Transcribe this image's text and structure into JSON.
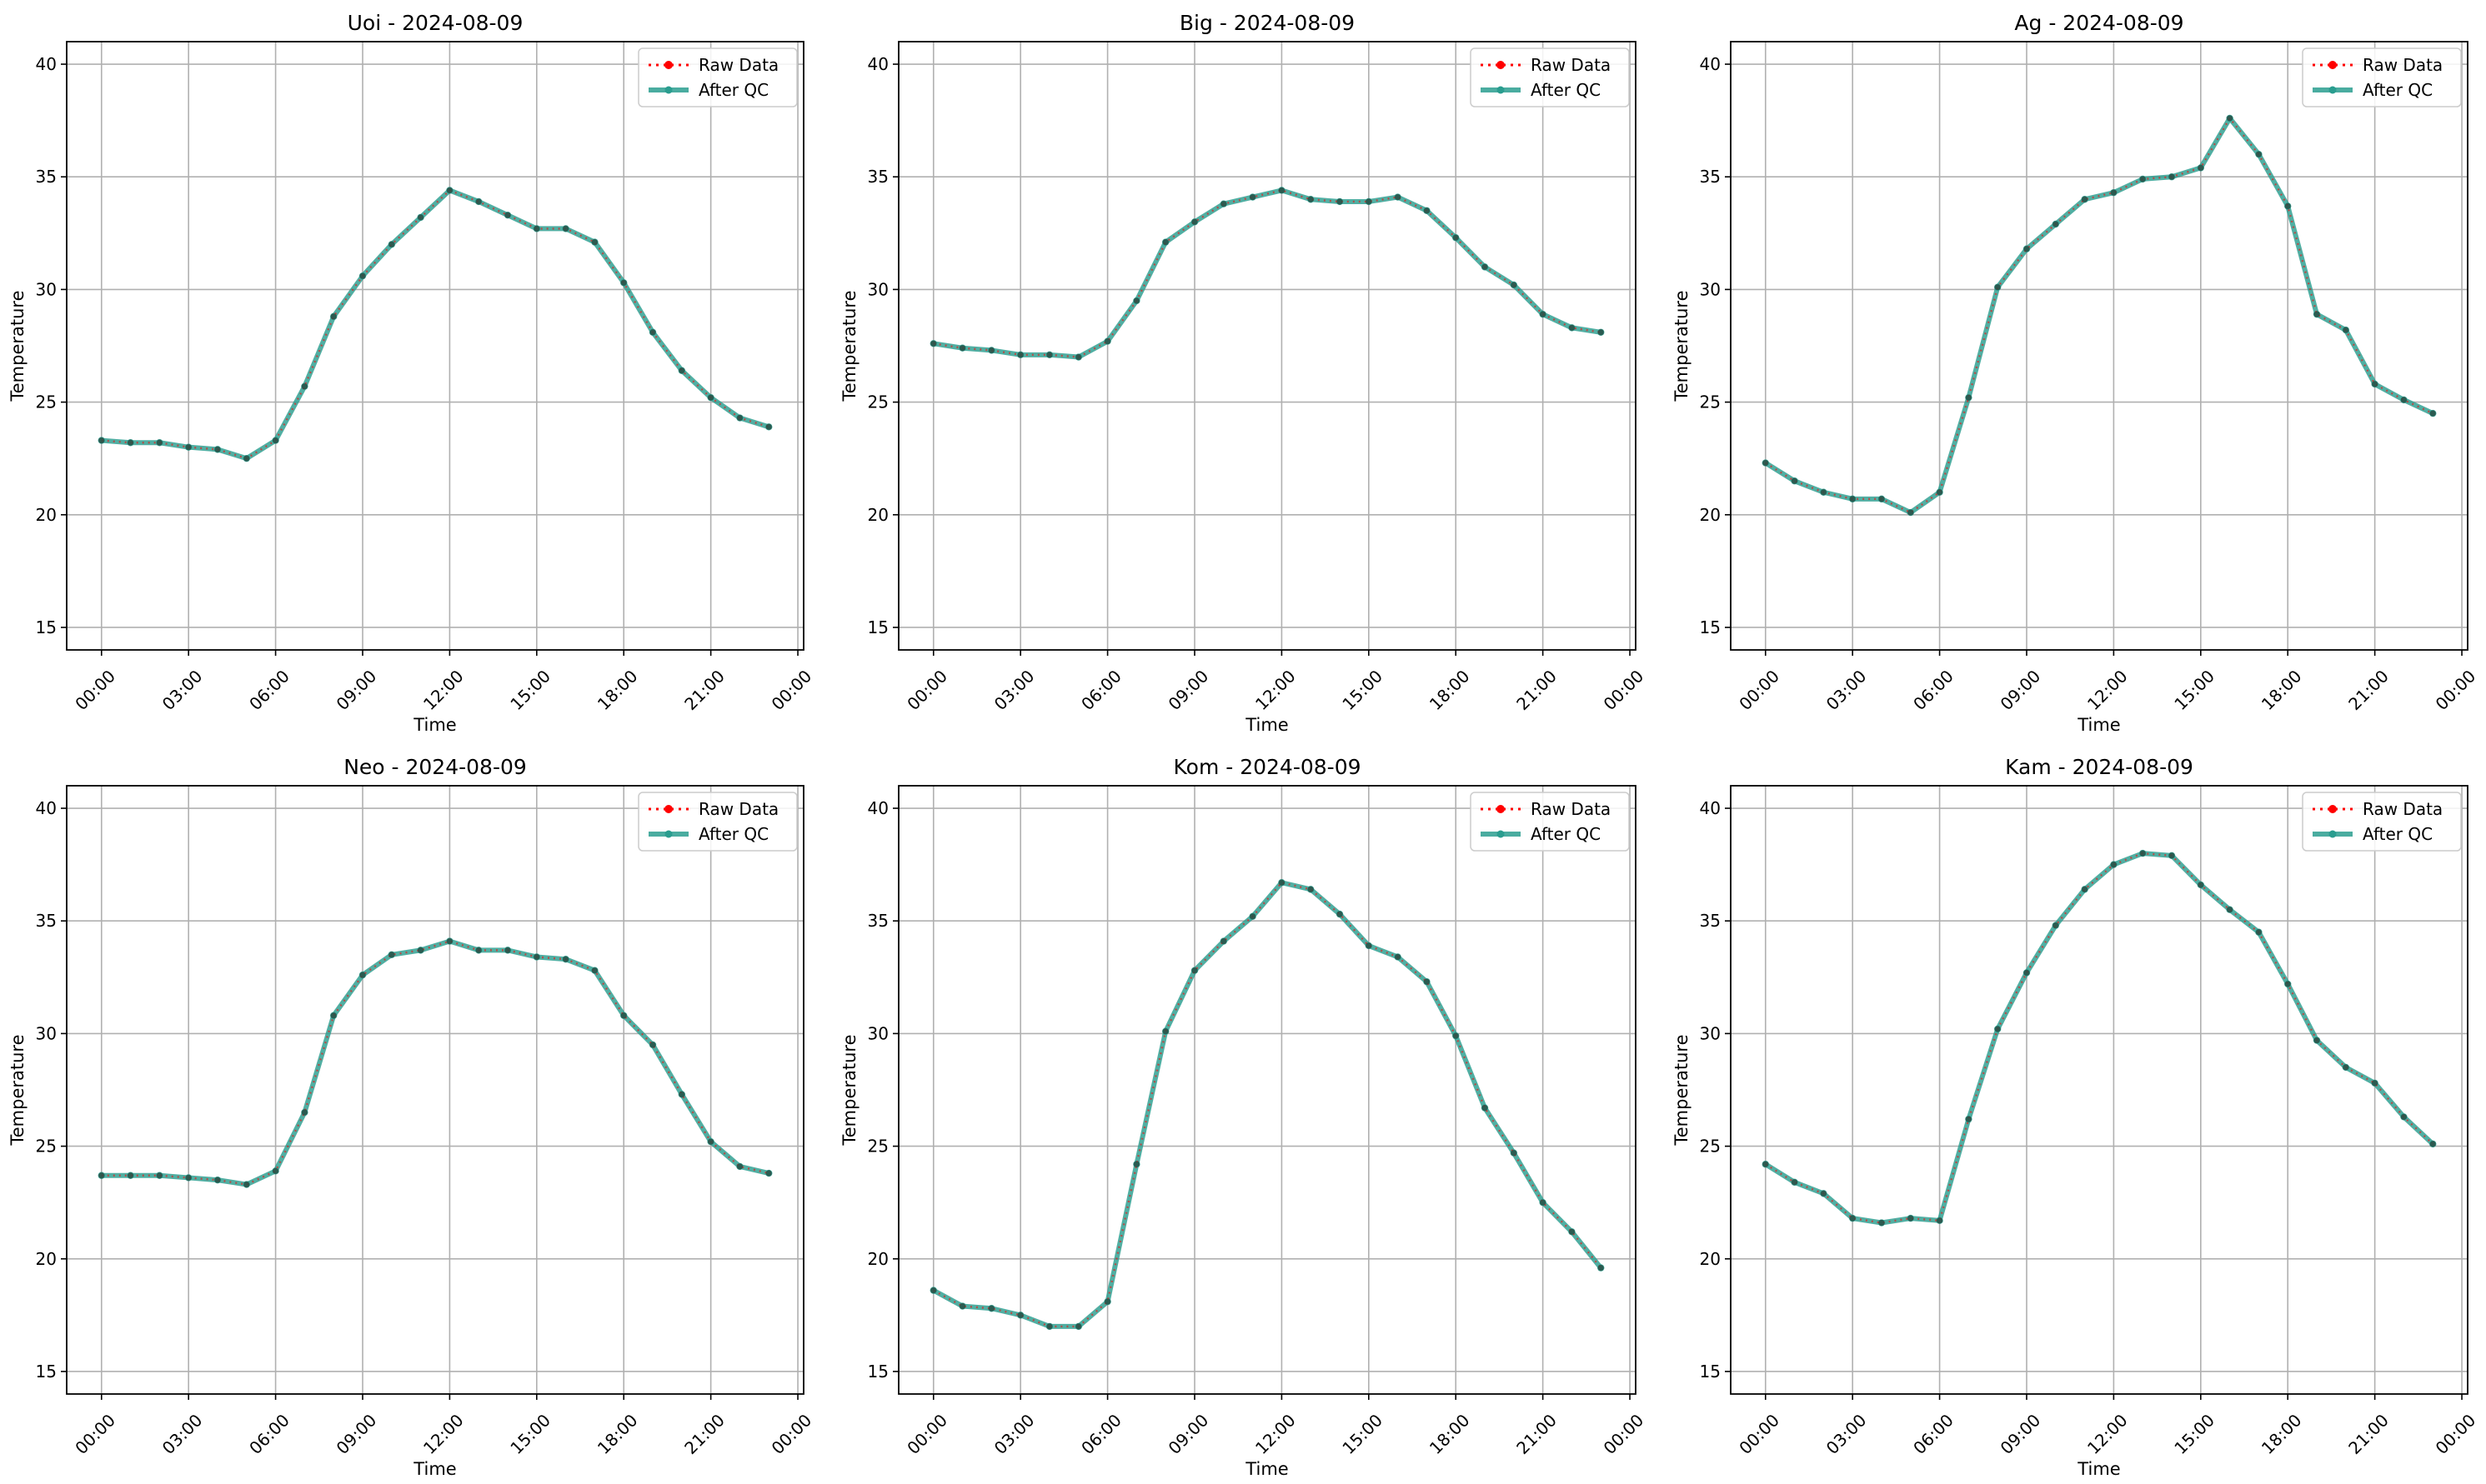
{
  "figure": {
    "xticks": [
      "00:00",
      "03:00",
      "06:00",
      "09:00",
      "12:00",
      "15:00",
      "18:00",
      "21:00",
      "00:00"
    ],
    "yticks": [
      15,
      20,
      25,
      30,
      35,
      40
    ]
  },
  "chart_data": [
    {
      "type": "line",
      "title": "Uoi - 2024-08-09",
      "xlabel": "Time",
      "ylabel": "Temperature",
      "x_hours": [
        0,
        1,
        2,
        3,
        4,
        5,
        6,
        7,
        8,
        9,
        10,
        11,
        12,
        13,
        14,
        15,
        16,
        17,
        18,
        19,
        20,
        21,
        22,
        23
      ],
      "xlim": [
        -1.2,
        24.2
      ],
      "ylim": [
        14,
        41
      ],
      "grid": true,
      "legend": "top-right",
      "series": [
        {
          "name": "Raw Data",
          "color": "#ff0000",
          "style": "dotted-markers",
          "values": [
            23.3,
            23.2,
            23.2,
            23.0,
            22.9,
            22.5,
            23.3,
            25.7,
            28.8,
            30.6,
            32.0,
            33.2,
            34.4,
            33.9,
            33.3,
            32.7,
            32.7,
            32.1,
            30.3,
            28.1,
            26.4,
            25.2,
            24.3,
            23.9
          ]
        },
        {
          "name": "After QC",
          "color": "#2a9d8f",
          "style": "solid-thick",
          "values": [
            23.3,
            23.2,
            23.2,
            23.0,
            22.9,
            22.5,
            23.3,
            25.7,
            28.8,
            30.6,
            32.0,
            33.2,
            34.4,
            33.9,
            33.3,
            32.7,
            32.7,
            32.1,
            30.3,
            28.1,
            26.4,
            25.2,
            24.3,
            23.9
          ]
        }
      ]
    },
    {
      "type": "line",
      "title": "Big - 2024-08-09",
      "xlabel": "Time",
      "ylabel": "Temperature",
      "x_hours": [
        0,
        1,
        2,
        3,
        4,
        5,
        6,
        7,
        8,
        9,
        10,
        11,
        12,
        13,
        14,
        15,
        16,
        17,
        18,
        19,
        20,
        21,
        22,
        23
      ],
      "xlim": [
        -1.2,
        24.2
      ],
      "ylim": [
        14,
        41
      ],
      "grid": true,
      "legend": "top-right",
      "series": [
        {
          "name": "Raw Data",
          "color": "#ff0000",
          "style": "dotted-markers",
          "values": [
            27.6,
            27.4,
            27.3,
            27.1,
            27.1,
            27.0,
            27.7,
            29.5,
            32.1,
            33.0,
            33.8,
            34.1,
            34.4,
            34.0,
            33.9,
            33.9,
            34.1,
            33.5,
            32.3,
            31.0,
            30.2,
            28.9,
            28.3,
            28.1
          ]
        },
        {
          "name": "After QC",
          "color": "#2a9d8f",
          "style": "solid-thick",
          "values": [
            27.6,
            27.4,
            27.3,
            27.1,
            27.1,
            27.0,
            27.7,
            29.5,
            32.1,
            33.0,
            33.8,
            34.1,
            34.4,
            34.0,
            33.9,
            33.9,
            34.1,
            33.5,
            32.3,
            31.0,
            30.2,
            28.9,
            28.3,
            28.1
          ]
        }
      ]
    },
    {
      "type": "line",
      "title": "Ag - 2024-08-09",
      "xlabel": "Time",
      "ylabel": "Temperature",
      "x_hours": [
        0,
        1,
        2,
        3,
        4,
        5,
        6,
        7,
        8,
        9,
        10,
        11,
        12,
        13,
        14,
        15,
        16,
        17,
        18,
        19,
        20,
        21,
        22,
        23
      ],
      "xlim": [
        -1.2,
        24.2
      ],
      "ylim": [
        14,
        41
      ],
      "grid": true,
      "legend": "top-right",
      "series": [
        {
          "name": "Raw Data",
          "color": "#ff0000",
          "style": "dotted-markers",
          "values": [
            22.3,
            21.5,
            21.0,
            20.7,
            20.7,
            20.1,
            21.0,
            25.2,
            30.1,
            31.8,
            32.9,
            34.0,
            34.3,
            34.9,
            35.0,
            35.4,
            37.6,
            36.0,
            33.7,
            28.9,
            28.2,
            25.8,
            25.1,
            24.5
          ]
        },
        {
          "name": "After QC",
          "color": "#2a9d8f",
          "style": "solid-thick",
          "values": [
            22.3,
            21.5,
            21.0,
            20.7,
            20.7,
            20.1,
            21.0,
            25.2,
            30.1,
            31.8,
            32.9,
            34.0,
            34.3,
            34.9,
            35.0,
            35.4,
            37.6,
            36.0,
            33.7,
            28.9,
            28.2,
            25.8,
            25.1,
            24.5
          ]
        }
      ]
    },
    {
      "type": "line",
      "title": "Neo - 2024-08-09",
      "xlabel": "Time",
      "ylabel": "Temperature",
      "x_hours": [
        0,
        1,
        2,
        3,
        4,
        5,
        6,
        7,
        8,
        9,
        10,
        11,
        12,
        13,
        14,
        15,
        16,
        17,
        18,
        19,
        20,
        21,
        22,
        23
      ],
      "xlim": [
        -1.2,
        24.2
      ],
      "ylim": [
        14,
        41
      ],
      "grid": true,
      "legend": "top-right",
      "series": [
        {
          "name": "Raw Data",
          "color": "#ff0000",
          "style": "dotted-markers",
          "values": [
            23.7,
            23.7,
            23.7,
            23.6,
            23.5,
            23.3,
            23.9,
            26.5,
            30.8,
            32.6,
            33.5,
            33.7,
            34.1,
            33.7,
            33.7,
            33.4,
            33.3,
            32.8,
            30.8,
            29.5,
            27.3,
            25.2,
            24.1,
            23.8
          ]
        },
        {
          "name": "After QC",
          "color": "#2a9d8f",
          "style": "solid-thick",
          "values": [
            23.7,
            23.7,
            23.7,
            23.6,
            23.5,
            23.3,
            23.9,
            26.5,
            30.8,
            32.6,
            33.5,
            33.7,
            34.1,
            33.7,
            33.7,
            33.4,
            33.3,
            32.8,
            30.8,
            29.5,
            27.3,
            25.2,
            24.1,
            23.8
          ]
        }
      ]
    },
    {
      "type": "line",
      "title": "Kom - 2024-08-09",
      "xlabel": "Time",
      "ylabel": "Temperature",
      "x_hours": [
        0,
        1,
        2,
        3,
        4,
        5,
        6,
        7,
        8,
        9,
        10,
        11,
        12,
        13,
        14,
        15,
        16,
        17,
        18,
        19,
        20,
        21,
        22,
        23
      ],
      "xlim": [
        -1.2,
        24.2
      ],
      "ylim": [
        14,
        41
      ],
      "grid": true,
      "legend": "top-right",
      "series": [
        {
          "name": "Raw Data",
          "color": "#ff0000",
          "style": "dotted-markers",
          "values": [
            18.6,
            17.9,
            17.8,
            17.5,
            17.0,
            17.0,
            18.1,
            24.2,
            30.1,
            32.8,
            34.1,
            35.2,
            36.7,
            36.4,
            35.3,
            33.9,
            33.4,
            32.3,
            29.9,
            26.7,
            24.7,
            22.5,
            21.2,
            19.6
          ]
        },
        {
          "name": "After QC",
          "color": "#2a9d8f",
          "style": "solid-thick",
          "values": [
            18.6,
            17.9,
            17.8,
            17.5,
            17.0,
            17.0,
            18.1,
            24.2,
            30.1,
            32.8,
            34.1,
            35.2,
            36.7,
            36.4,
            35.3,
            33.9,
            33.4,
            32.3,
            29.9,
            26.7,
            24.7,
            22.5,
            21.2,
            19.6
          ]
        }
      ]
    },
    {
      "type": "line",
      "title": "Kam - 2024-08-09",
      "xlabel": "Time",
      "ylabel": "Temperature",
      "x_hours": [
        0,
        1,
        2,
        3,
        4,
        5,
        6,
        7,
        8,
        9,
        10,
        11,
        12,
        13,
        14,
        15,
        16,
        17,
        18,
        19,
        20,
        21,
        22,
        23
      ],
      "xlim": [
        -1.2,
        24.2
      ],
      "ylim": [
        14,
        41
      ],
      "grid": true,
      "legend": "top-right",
      "series": [
        {
          "name": "Raw Data",
          "color": "#ff0000",
          "style": "dotted-markers",
          "values": [
            24.2,
            23.4,
            22.9,
            21.8,
            21.6,
            21.8,
            21.7,
            26.2,
            30.2,
            32.7,
            34.8,
            36.4,
            37.5,
            38.0,
            37.9,
            36.6,
            35.5,
            34.5,
            32.2,
            29.7,
            28.5,
            27.8,
            26.3,
            25.1
          ]
        },
        {
          "name": "After QC",
          "color": "#2a9d8f",
          "style": "solid-thick",
          "values": [
            24.2,
            23.4,
            22.9,
            21.8,
            21.6,
            21.8,
            21.7,
            26.2,
            30.2,
            32.7,
            34.8,
            36.4,
            37.5,
            38.0,
            37.9,
            36.6,
            35.5,
            34.5,
            32.2,
            29.7,
            28.5,
            27.8,
            26.3,
            25.1
          ]
        }
      ]
    }
  ]
}
